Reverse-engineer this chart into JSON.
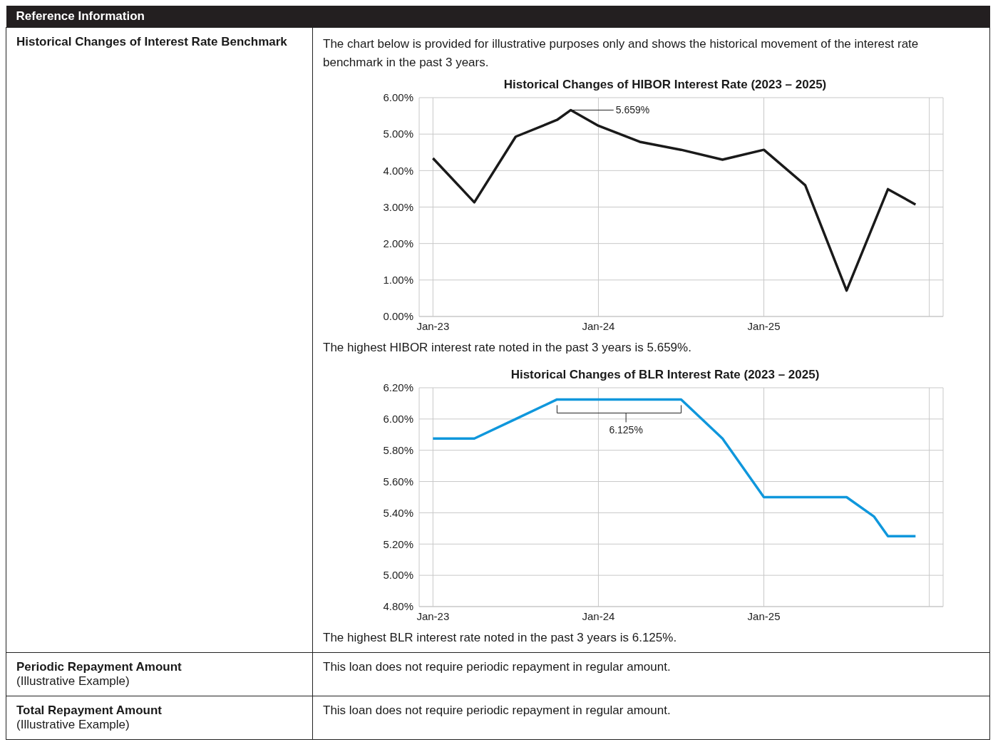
{
  "chart_data": [
    {
      "type": "line",
      "title": "Historical Changes of HIBOR Interest Rate (2023 – 2025)",
      "annotations": [
        "Reference Information",
        "Historical Changes of Interest Rate Benchmark",
        "The chart below is provided for illustrative purposes only and shows the historical movement of the interest rate benchmark in the past 3 years.",
        "The highest HIBOR interest rate noted in the past 3 years is 5.659%.",
        "5.659%"
      ],
      "x": [
        "2023-01",
        "2023-04",
        "2023-07",
        "2023-10",
        "2023-11",
        "2024-01",
        "2024-04",
        "2024-07",
        "2024-10",
        "2025-01",
        "2025-04",
        "2025-07",
        "2025-10",
        "2025-12"
      ],
      "series": [
        {
          "color": "#1a1a1a",
          "values": [
            4.34,
            3.13,
            4.93,
            5.39,
            5.659,
            5.23,
            4.79,
            4.57,
            4.3,
            4.57,
            3.6,
            0.71,
            3.49,
            3.07
          ]
        }
      ],
      "xlim": [
        "2022-12",
        "2026-02"
      ],
      "xticks": [
        {
          "value": "2023-01",
          "label": "Jan-23"
        },
        {
          "value": "2024-01",
          "label": "Jan-24"
        },
        {
          "value": "2025-01",
          "label": "Jan-25"
        },
        {
          "value": "2026-01",
          "label": null
        }
      ],
      "ylim": [
        0,
        6
      ],
      "yticks": [
        {
          "value": 0,
          "label": "0.00%"
        },
        {
          "value": 1,
          "label": "1.00%"
        },
        {
          "value": 2,
          "label": "2.00%"
        },
        {
          "value": 3,
          "label": "3.00%"
        },
        {
          "value": 4,
          "label": "4.00%"
        },
        {
          "value": 5,
          "label": "5.00%"
        },
        {
          "value": 6,
          "label": "6.00%"
        }
      ],
      "grid": true,
      "marker": "none",
      "line_style": "solid"
    },
    {
      "type": "line",
      "title": "Historical Changes of BLR Interest Rate (2023 – 2025)",
      "annotations": [
        {
          "text": "6.125%",
          "x": "2024-03",
          "y": 6.125
        },
        "The highest BLR interest rate noted in the past 3 years is 6.125%.",
        "Periodic Repayment Amount",
        "(Illustrative Example)",
        "This loan does not require periodic repayment in regular amount.",
        "Total Repayment Amount",
        "(Illustrative Example)",
        "This loan does not require periodic repayment in regular amount."
      ],
      "x": [
        "2023-01",
        "2023-04",
        "2023-07",
        "2023-10",
        "2024-01",
        "2024-04",
        "2024-07",
        "2024-10",
        "2025-01",
        "2025-04",
        "2025-07",
        "2025-09",
        "2025-10",
        "2025-12"
      ],
      "series": [
        {
          "color": "#0f97dc",
          "values": [
            5.875,
            5.875,
            6.0,
            6.125,
            6.125,
            6.125,
            6.125,
            5.875,
            5.5,
            5.5,
            5.5,
            5.375,
            5.25,
            5.25
          ]
        }
      ],
      "xlim": [
        "2022-12",
        "2026-02"
      ],
      "xticks": [
        {
          "value": "2023-01",
          "label": "Jan-23"
        },
        {
          "value": "2024-01",
          "label": "Jan-24"
        },
        {
          "value": "2025-01",
          "label": "Jan-25"
        },
        {
          "value": "2026-01",
          "label": null
        }
      ],
      "ylim": [
        4.8,
        6.2
      ],
      "yticks": [
        {
          "value": 4.8,
          "label": "4.80%"
        },
        {
          "value": 5.0,
          "label": "5.00%"
        },
        {
          "value": 5.2,
          "label": "5.20%"
        },
        {
          "value": 5.4,
          "label": "5.40%"
        },
        {
          "value": 5.6,
          "label": "5.60%"
        },
        {
          "value": 5.8,
          "label": "5.80%"
        },
        {
          "value": 6.0,
          "label": "6.00%"
        },
        {
          "value": 6.2,
          "label": "6.20%"
        }
      ],
      "grid": true,
      "marker": "none",
      "line_style": "solid"
    }
  ]
}
